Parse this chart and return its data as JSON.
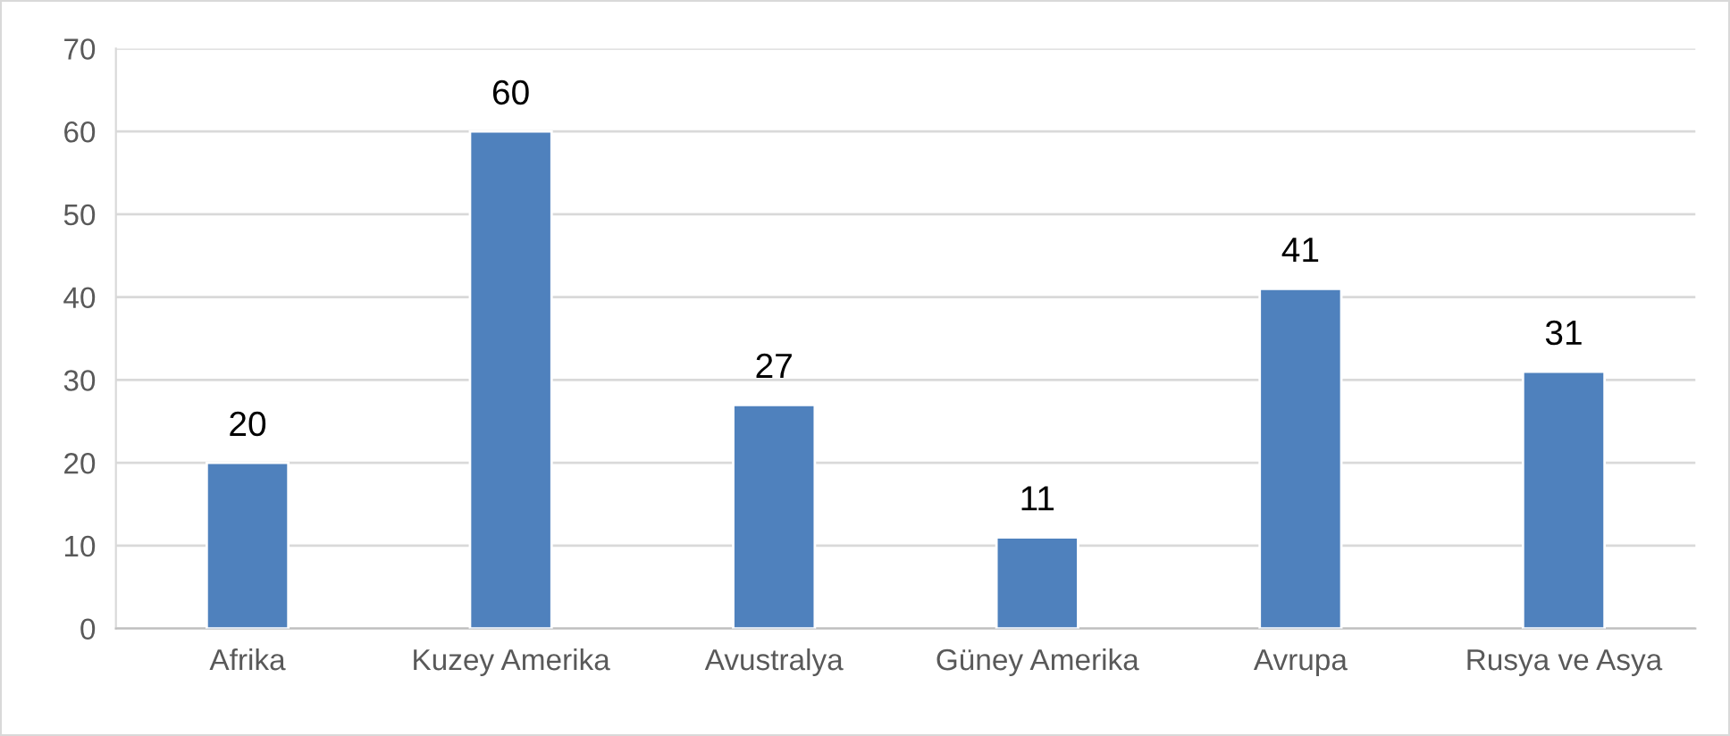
{
  "chart_data": {
    "type": "bar",
    "categories": [
      "Afrika",
      "Kuzey Amerika",
      "Avustralya",
      "Güney Amerika",
      "Avrupa",
      "Rusya ve Asya"
    ],
    "values": [
      20,
      60,
      27,
      11,
      41,
      31
    ],
    "color": "#4f81bd",
    "ylim": [
      0,
      70
    ],
    "yticks": [
      0,
      10,
      20,
      30,
      40,
      50,
      60,
      70
    ],
    "grid": "y",
    "data_labels": true
  }
}
